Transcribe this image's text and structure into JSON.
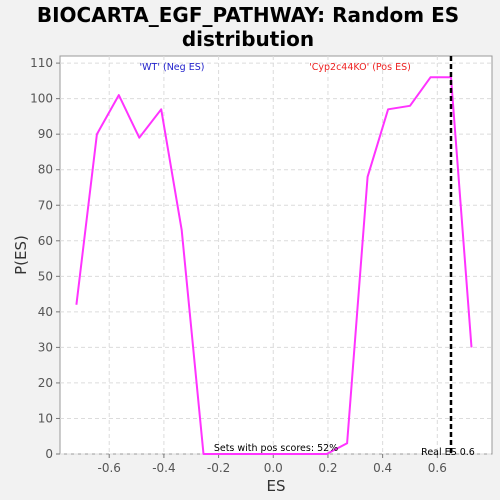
{
  "chart_data": {
    "type": "line",
    "title_lines": [
      "BIOCARTA_EGF_PATHWAY: Random ES",
      "distribution"
    ],
    "xlabel": "ES",
    "ylabel": "P(ES)",
    "xlim": [
      -0.78,
      0.8
    ],
    "ylim": [
      0,
      112
    ],
    "x_ticks": [
      -0.6,
      -0.4,
      -0.2,
      0.0,
      0.2,
      0.4,
      0.6
    ],
    "x_tick_labels": [
      "-0.6",
      "-0.4",
      "-0.2",
      "0.0",
      "0.2",
      "0.4",
      "0.6"
    ],
    "y_ticks": [
      0,
      10,
      20,
      30,
      40,
      50,
      60,
      70,
      80,
      90,
      100,
      110
    ],
    "y_tick_labels": [
      "0",
      "10",
      "20",
      "30",
      "40",
      "50",
      "60",
      "70",
      "80",
      "90",
      "100",
      "110"
    ],
    "grid": true,
    "series": [
      {
        "color": "#ff33ff",
        "x": [
          -0.72,
          -0.645,
          -0.565,
          -0.49,
          -0.41,
          -0.335,
          -0.255,
          -0.18,
          -0.105,
          -0.03,
          0.045,
          0.12,
          0.195,
          0.27,
          0.345,
          0.42,
          0.5,
          0.575,
          0.65,
          0.725
        ],
        "y": [
          42,
          90,
          101,
          89,
          97,
          63,
          0,
          0,
          0,
          0,
          0,
          0,
          0,
          3,
          78,
          97,
          98,
          106,
          106,
          30
        ]
      }
    ],
    "real_es": {
      "x": 0.65,
      "label": "Real ES 0.6",
      "color": "#000000"
    },
    "annotations": {
      "neg_label": "'WT' (Neg ES)",
      "neg_color": "#2222cc",
      "pos_label": "'Cyp2c44KO' (Pos ES)",
      "pos_color": "#ee2222",
      "pos_fraction_text": "Sets with pos scores: 52%"
    }
  }
}
